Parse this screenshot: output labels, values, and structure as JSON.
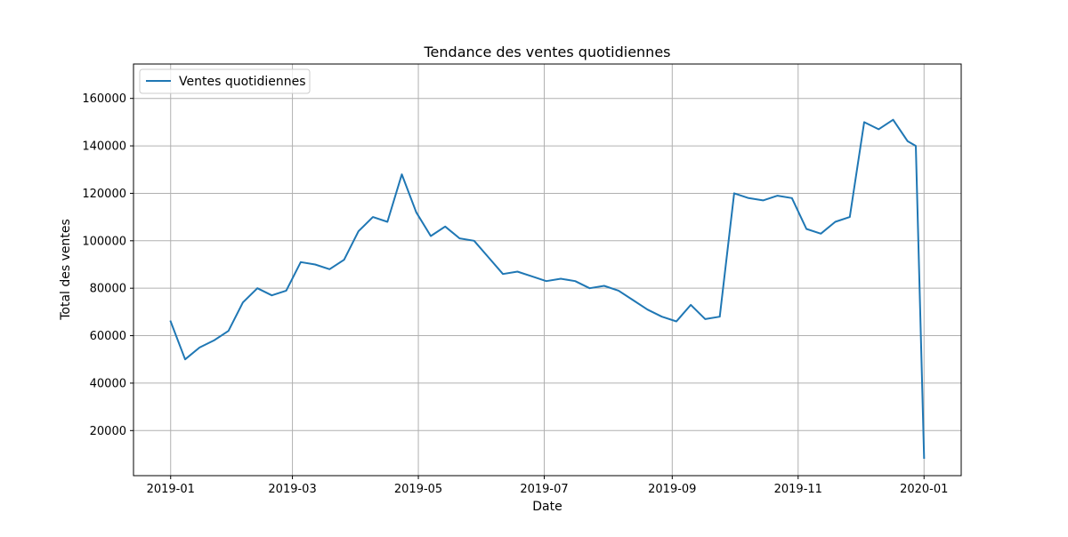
{
  "chart_data": {
    "type": "line",
    "title": "Tendance des ventes quotidiennes",
    "xlabel": "Date",
    "ylabel": "Total des ventes",
    "x_tick_labels": [
      "2019-01",
      "2019-03",
      "2019-05",
      "2019-07",
      "2019-09",
      "2019-11",
      "2020-01"
    ],
    "x_tick_dates": [
      "2019-01-01",
      "2019-03-01",
      "2019-05-01",
      "2019-07-01",
      "2019-09-01",
      "2019-11-01",
      "2020-01-01"
    ],
    "y_ticks": [
      20000,
      40000,
      60000,
      80000,
      100000,
      120000,
      140000,
      160000
    ],
    "xlim": [
      "2018-12-14",
      "2020-01-19"
    ],
    "ylim": [
      1000,
      174500
    ],
    "grid": true,
    "legend_position": "top-left",
    "colors": {
      "line": "#1f77b4",
      "grid": "#b0b0b0",
      "axis": "#000000"
    },
    "series": [
      {
        "name": "Ventes quotidiennes",
        "x": [
          "2019-01-01",
          "2019-01-08",
          "2019-01-15",
          "2019-01-22",
          "2019-01-29",
          "2019-02-05",
          "2019-02-12",
          "2019-02-19",
          "2019-02-26",
          "2019-03-05",
          "2019-03-12",
          "2019-03-19",
          "2019-03-26",
          "2019-04-02",
          "2019-04-09",
          "2019-04-16",
          "2019-04-23",
          "2019-04-30",
          "2019-05-07",
          "2019-05-14",
          "2019-05-21",
          "2019-05-28",
          "2019-06-04",
          "2019-06-11",
          "2019-06-18",
          "2019-06-25",
          "2019-07-02",
          "2019-07-09",
          "2019-07-16",
          "2019-07-23",
          "2019-07-30",
          "2019-08-06",
          "2019-08-13",
          "2019-08-20",
          "2019-08-27",
          "2019-09-03",
          "2019-09-10",
          "2019-09-17",
          "2019-09-24",
          "2019-10-01",
          "2019-10-08",
          "2019-10-15",
          "2019-10-22",
          "2019-10-29",
          "2019-11-05",
          "2019-11-12",
          "2019-11-19",
          "2019-11-26",
          "2019-12-03",
          "2019-12-10",
          "2019-12-17",
          "2019-12-24",
          "2019-12-28",
          "2020-01-01"
        ],
        "y": [
          66000,
          50000,
          55000,
          58000,
          62000,
          74000,
          80000,
          77000,
          79000,
          91000,
          90000,
          88000,
          92000,
          104000,
          110000,
          108000,
          128000,
          112000,
          102000,
          106000,
          101000,
          100000,
          93000,
          86000,
          87000,
          85000,
          83000,
          84000,
          83000,
          80000,
          81000,
          79000,
          75000,
          71000,
          68000,
          66000,
          73000,
          67000,
          68000,
          120000,
          118000,
          117000,
          119000,
          118000,
          105000,
          103000,
          108000,
          110000,
          150000,
          147000,
          151000,
          142000,
          140000,
          8500
        ]
      }
    ]
  }
}
